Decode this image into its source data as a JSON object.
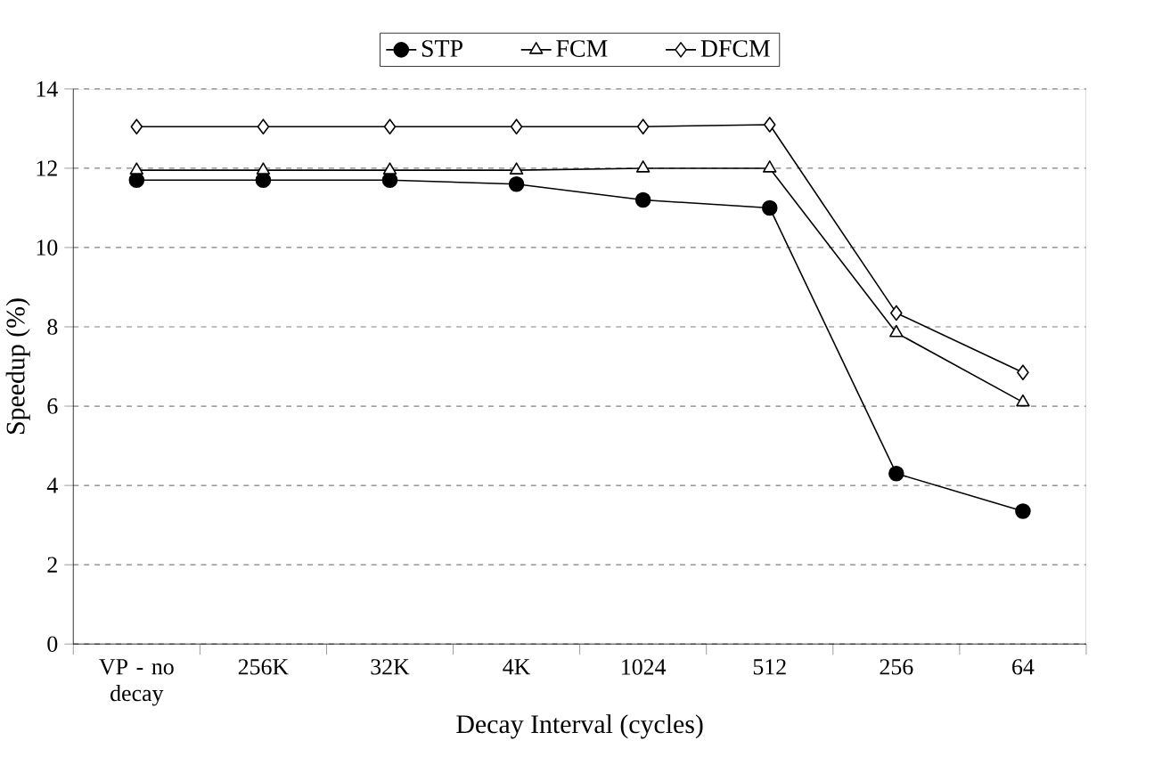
{
  "chart_data": {
    "type": "line",
    "xlabel": "Decay Interval (cycles)",
    "ylabel": "Speedup (%)",
    "categories": [
      "VP - no decay",
      "256K",
      "32K",
      "4K",
      "1024",
      "512",
      "256",
      "64"
    ],
    "series": [
      {
        "name": "STP",
        "color": "#000000",
        "marker": "circle",
        "values": [
          11.7,
          11.7,
          11.7,
          11.6,
          11.2,
          11.0,
          4.3,
          3.35
        ]
      },
      {
        "name": "FCM",
        "color": "#000000",
        "marker": "triangle",
        "values": [
          11.95,
          11.95,
          11.95,
          11.95,
          12.0,
          12.0,
          7.85,
          6.1
        ]
      },
      {
        "name": "DFCM",
        "color": "#000000",
        "marker": "diamond",
        "values": [
          13.05,
          13.05,
          13.05,
          13.05,
          13.05,
          13.1,
          8.35,
          6.85
        ]
      }
    ],
    "ylim": [
      0,
      14
    ],
    "yticks": [
      0,
      2,
      4,
      6,
      8,
      10,
      12,
      14
    ],
    "grid": "y",
    "legend": "top",
    "line_style": "solid"
  }
}
